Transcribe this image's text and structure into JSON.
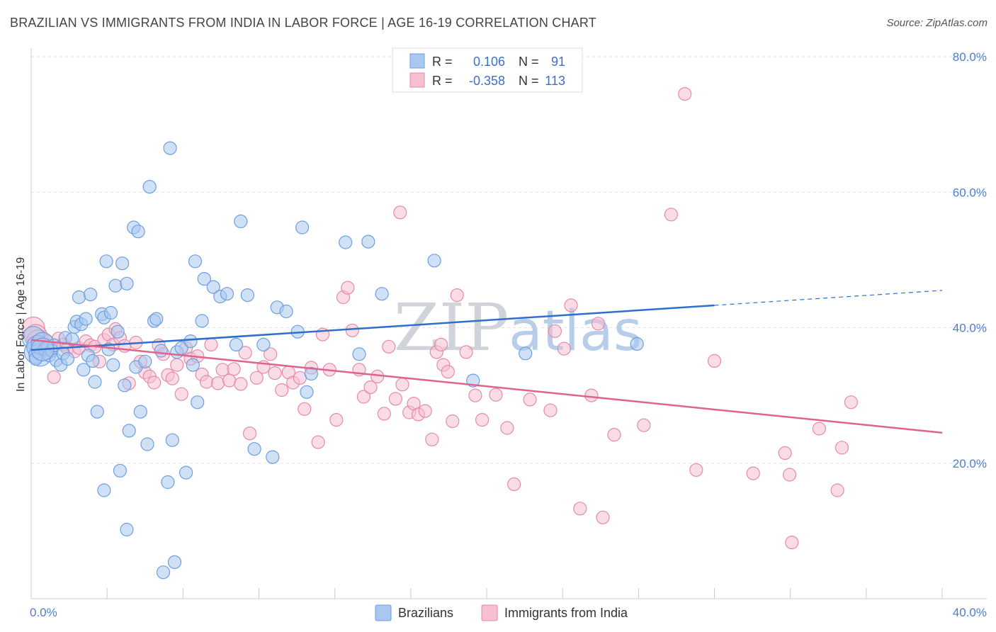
{
  "header": {
    "title": "BRAZILIAN VS IMMIGRANTS FROM INDIA IN LABOR FORCE | AGE 16-19 CORRELATION CHART",
    "source": "Source: ZipAtlas.com"
  },
  "watermark": {
    "zip": "ZIP",
    "atlas": "atlas"
  },
  "legend": {
    "rows": [
      {
        "r_label": "R =",
        "r_value": "0.106",
        "n_label": "N =",
        "n_value": "91"
      },
      {
        "r_label": "R =",
        "r_value": "-0.358",
        "n_label": "N =",
        "n_value": "113"
      }
    ]
  },
  "colors": {
    "blue_fill": "#a9c8ef",
    "blue_stroke": "#6e9ee0",
    "blue_line": "#2f6fcc",
    "pink_fill": "#f6bfd2",
    "pink_stroke": "#e58aaa",
    "pink_line": "#e0638f",
    "tick_label": "#4a7fcf",
    "grid": "#e2e2e2"
  },
  "chart_data": {
    "type": "scatter",
    "title": "BRAZILIAN VS IMMIGRANTS FROM INDIA IN LABOR FORCE | AGE 16-19 CORRELATION CHART",
    "xlabel": "",
    "ylabel": "In Labor Force | Age 16-19",
    "xlim": [
      0,
      40
    ],
    "ylim": [
      0,
      80
    ],
    "x_tick_labels": [
      "0.0%",
      "40.0%"
    ],
    "y_tick_labels": [
      "20.0%",
      "40.0%",
      "60.0%",
      "80.0%"
    ],
    "y_tick_values": [
      20,
      40,
      60,
      80
    ],
    "grid": true,
    "legend_position": "top-center",
    "series": [
      {
        "name": "Brazilians",
        "r": 0.106,
        "n": 91,
        "trend": {
          "x0": 0,
          "y0": 36.7,
          "x1": 30.0,
          "y1": 43.3,
          "dash_to_x": 40,
          "dash_to_y": 45.5
        },
        "points": [
          [
            0.1,
            38.5
          ],
          [
            0.2,
            36.4
          ],
          [
            0.3,
            37.2
          ],
          [
            0.4,
            36.0
          ],
          [
            0.5,
            37.6
          ],
          [
            0.6,
            36.9
          ],
          [
            0.7,
            37.1
          ],
          [
            0.8,
            35.9
          ],
          [
            0.9,
            36.6
          ],
          [
            1.0,
            37.4
          ],
          [
            1.1,
            35.2
          ],
          [
            1.3,
            34.5
          ],
          [
            1.4,
            36.2
          ],
          [
            1.5,
            38.5
          ],
          [
            1.6,
            35.4
          ],
          [
            1.8,
            38.3
          ],
          [
            1.9,
            40.1
          ],
          [
            2.0,
            40.9
          ],
          [
            2.1,
            44.5
          ],
          [
            2.2,
            40.5
          ],
          [
            2.3,
            33.8
          ],
          [
            2.4,
            41.3
          ],
          [
            2.5,
            35.9
          ],
          [
            2.6,
            44.9
          ],
          [
            2.7,
            35.1
          ],
          [
            2.8,
            32.0
          ],
          [
            2.9,
            27.6
          ],
          [
            3.1,
            42.0
          ],
          [
            3.2,
            41.5
          ],
          [
            3.3,
            49.8
          ],
          [
            3.4,
            36.8
          ],
          [
            3.5,
            42.2
          ],
          [
            3.6,
            34.5
          ],
          [
            3.7,
            46.2
          ],
          [
            3.8,
            39.4
          ],
          [
            3.9,
            18.9
          ],
          [
            4.0,
            49.5
          ],
          [
            4.1,
            31.5
          ],
          [
            4.2,
            46.5
          ],
          [
            4.3,
            24.8
          ],
          [
            4.5,
            54.8
          ],
          [
            4.6,
            34.2
          ],
          [
            4.7,
            54.2
          ],
          [
            4.8,
            27.6
          ],
          [
            5.0,
            35.0
          ],
          [
            5.1,
            22.8
          ],
          [
            5.2,
            60.8
          ],
          [
            5.4,
            41.0
          ],
          [
            5.5,
            41.3
          ],
          [
            5.7,
            36.6
          ],
          [
            6.0,
            17.2
          ],
          [
            6.1,
            66.5
          ],
          [
            6.2,
            23.4
          ],
          [
            6.4,
            36.4
          ],
          [
            6.6,
            37.0
          ],
          [
            6.8,
            18.6
          ],
          [
            7.0,
            38.0
          ],
          [
            7.1,
            34.5
          ],
          [
            7.2,
            49.8
          ],
          [
            7.3,
            29.0
          ],
          [
            7.5,
            41.0
          ],
          [
            7.6,
            47.2
          ],
          [
            8.0,
            46.0
          ],
          [
            8.3,
            44.6
          ],
          [
            8.6,
            45.0
          ],
          [
            9.0,
            37.5
          ],
          [
            9.2,
            55.7
          ],
          [
            9.5,
            44.8
          ],
          [
            9.8,
            22.1
          ],
          [
            10.2,
            37.5
          ],
          [
            10.6,
            20.9
          ],
          [
            10.8,
            43.0
          ],
          [
            11.2,
            42.4
          ],
          [
            11.7,
            39.4
          ],
          [
            11.9,
            54.8
          ],
          [
            12.1,
            30.5
          ],
          [
            12.3,
            33.2
          ],
          [
            13.8,
            52.6
          ],
          [
            14.4,
            36.1
          ],
          [
            14.8,
            52.7
          ],
          [
            15.4,
            45.0
          ],
          [
            17.7,
            49.9
          ],
          [
            19.4,
            32.2
          ],
          [
            21.7,
            36.2
          ],
          [
            26.6,
            37.6
          ],
          [
            3.2,
            16.0
          ],
          [
            4.2,
            10.2
          ],
          [
            5.8,
            3.9
          ],
          [
            6.3,
            5.4
          ],
          [
            0.2,
            35.4
          ],
          [
            0.5,
            36.8
          ]
        ]
      },
      {
        "name": "Immigrants from India",
        "r": -0.358,
        "n": 113,
        "trend": {
          "x0": 0,
          "y0": 38.2,
          "x1": 40,
          "y1": 24.5
        },
        "points": [
          [
            0.1,
            39.9
          ],
          [
            0.2,
            38.8
          ],
          [
            0.3,
            38.0
          ],
          [
            0.5,
            37.6
          ],
          [
            0.7,
            38.0
          ],
          [
            0.9,
            36.8
          ],
          [
            1.0,
            32.7
          ],
          [
            1.2,
            38.4
          ],
          [
            1.4,
            37.5
          ],
          [
            1.6,
            36.9
          ],
          [
            1.9,
            36.5
          ],
          [
            2.1,
            37.0
          ],
          [
            2.4,
            38.0
          ],
          [
            2.6,
            37.4
          ],
          [
            2.8,
            37.2
          ],
          [
            3.0,
            35.0
          ],
          [
            3.2,
            38.2
          ],
          [
            3.4,
            39.0
          ],
          [
            3.6,
            37.5
          ],
          [
            3.7,
            39.8
          ],
          [
            3.9,
            38.5
          ],
          [
            4.1,
            37.3
          ],
          [
            4.3,
            31.8
          ],
          [
            4.6,
            37.8
          ],
          [
            4.8,
            35.0
          ],
          [
            5.0,
            33.4
          ],
          [
            5.2,
            32.8
          ],
          [
            5.4,
            31.9
          ],
          [
            5.6,
            37.4
          ],
          [
            5.8,
            36.1
          ],
          [
            6.0,
            33.0
          ],
          [
            6.2,
            32.5
          ],
          [
            6.4,
            34.5
          ],
          [
            6.6,
            30.2
          ],
          [
            6.8,
            37.0
          ],
          [
            7.0,
            35.4
          ],
          [
            7.3,
            35.8
          ],
          [
            7.5,
            33.1
          ],
          [
            7.7,
            32.0
          ],
          [
            7.9,
            37.5
          ],
          [
            8.2,
            31.8
          ],
          [
            8.4,
            33.8
          ],
          [
            8.7,
            32.2
          ],
          [
            8.9,
            33.9
          ],
          [
            9.2,
            31.7
          ],
          [
            9.4,
            36.3
          ],
          [
            9.6,
            24.4
          ],
          [
            9.9,
            32.6
          ],
          [
            10.2,
            34.2
          ],
          [
            10.5,
            36.1
          ],
          [
            10.7,
            33.3
          ],
          [
            11.0,
            30.8
          ],
          [
            11.3,
            33.4
          ],
          [
            11.5,
            31.9
          ],
          [
            11.8,
            32.6
          ],
          [
            12.0,
            28.0
          ],
          [
            12.3,
            34.1
          ],
          [
            12.6,
            23.1
          ],
          [
            12.8,
            39.0
          ],
          [
            13.1,
            33.8
          ],
          [
            13.4,
            26.4
          ],
          [
            13.7,
            44.5
          ],
          [
            13.9,
            45.9
          ],
          [
            14.1,
            39.6
          ],
          [
            14.4,
            33.8
          ],
          [
            14.6,
            29.8
          ],
          [
            14.9,
            31.2
          ],
          [
            15.2,
            32.8
          ],
          [
            15.5,
            27.3
          ],
          [
            15.7,
            37.2
          ],
          [
            16.0,
            29.5
          ],
          [
            16.3,
            31.6
          ],
          [
            16.6,
            27.5
          ],
          [
            16.8,
            28.8
          ],
          [
            17.0,
            27.2
          ],
          [
            17.3,
            27.7
          ],
          [
            17.6,
            23.5
          ],
          [
            17.8,
            36.4
          ],
          [
            18.1,
            34.5
          ],
          [
            18.3,
            33.5
          ],
          [
            18.5,
            26.2
          ],
          [
            18.7,
            44.8
          ],
          [
            19.1,
            36.4
          ],
          [
            19.5,
            30.0
          ],
          [
            19.8,
            26.4
          ],
          [
            20.4,
            30.1
          ],
          [
            20.9,
            25.2
          ],
          [
            21.2,
            16.9
          ],
          [
            21.9,
            29.4
          ],
          [
            22.8,
            27.8
          ],
          [
            23.4,
            36.9
          ],
          [
            23.7,
            43.3
          ],
          [
            24.1,
            13.3
          ],
          [
            24.6,
            30.0
          ],
          [
            24.9,
            40.6
          ],
          [
            25.1,
            12.0
          ],
          [
            25.6,
            24.2
          ],
          [
            26.9,
            25.6
          ],
          [
            28.1,
            56.7
          ],
          [
            29.2,
            19.0
          ],
          [
            30.0,
            35.1
          ],
          [
            31.7,
            18.5
          ],
          [
            33.1,
            21.5
          ],
          [
            33.3,
            18.3
          ],
          [
            33.4,
            8.3
          ],
          [
            34.6,
            25.1
          ],
          [
            35.4,
            16.0
          ],
          [
            35.6,
            22.3
          ],
          [
            36.0,
            29.0
          ],
          [
            28.7,
            74.5
          ],
          [
            16.2,
            57.0
          ],
          [
            23.0,
            39.5
          ],
          [
            18.0,
            37.5
          ]
        ]
      }
    ]
  },
  "bottom_legend": {
    "items": [
      {
        "label": "Brazilians"
      },
      {
        "label": "Immigrants from India"
      }
    ]
  }
}
